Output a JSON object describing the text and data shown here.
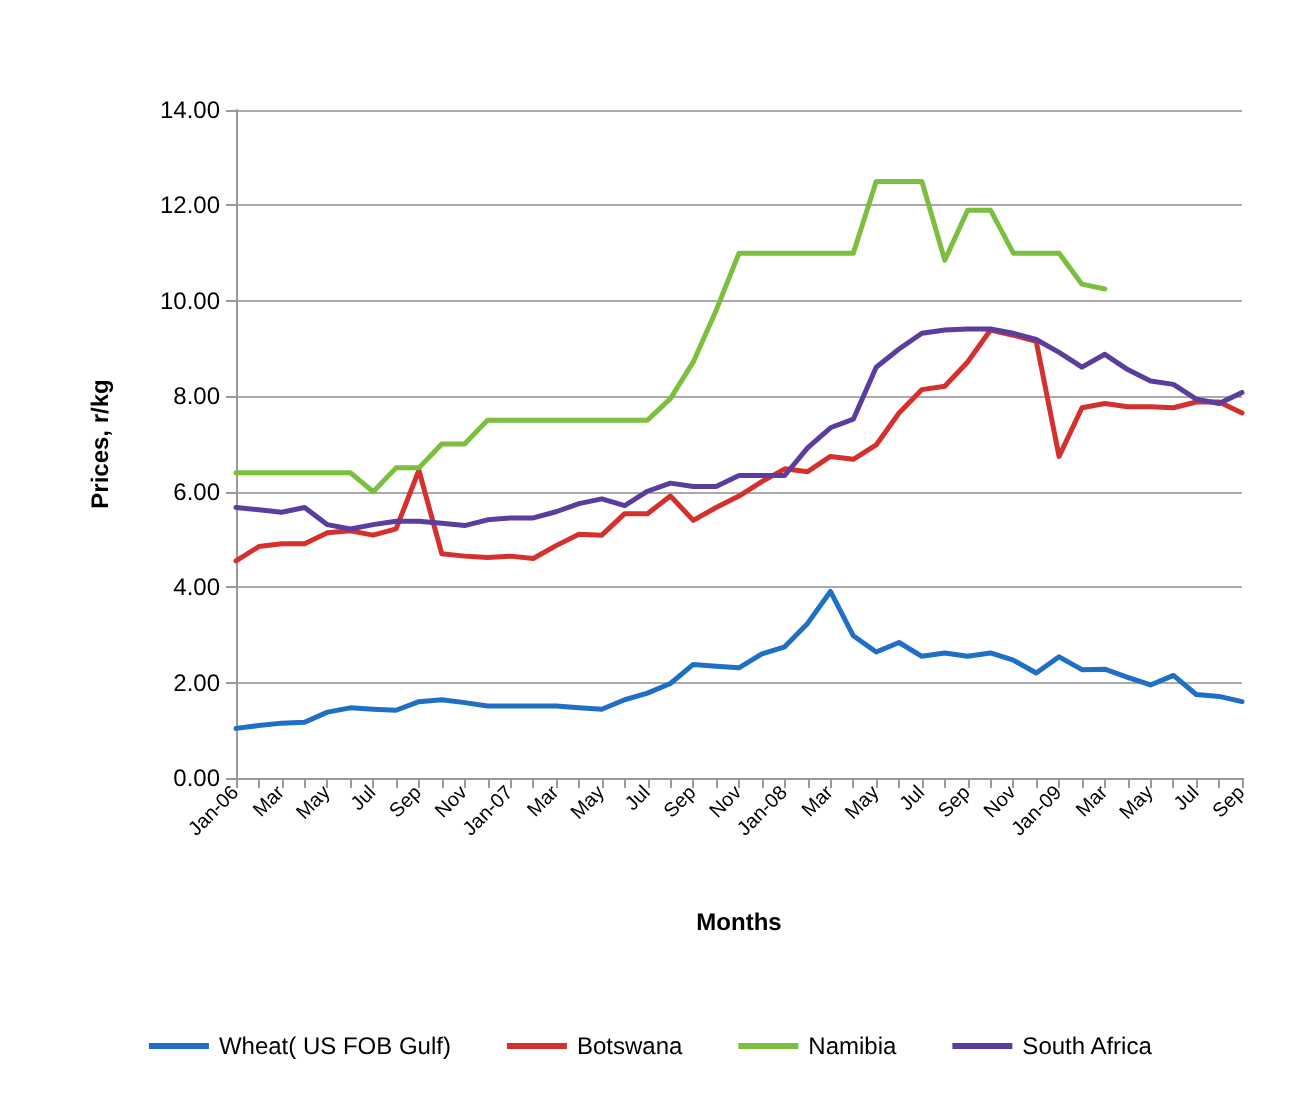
{
  "chart_data": {
    "type": "line",
    "xlabel": "Months",
    "ylabel": "Prices, r/kg",
    "categories": [
      "Jan-06",
      null,
      "Mar",
      null,
      "May",
      null,
      "Jul",
      null,
      "Sep",
      null,
      "Nov",
      null,
      "Jan-07",
      null,
      "Mar",
      null,
      "May",
      null,
      "Jul",
      null,
      "Sep",
      null,
      "Nov",
      null,
      "Jan-08",
      null,
      "Mar",
      null,
      "May",
      null,
      "Jul",
      null,
      "Sep",
      null,
      "Nov",
      null,
      "Jan-09",
      null,
      "Mar",
      null,
      "May",
      null,
      "Jul",
      null,
      "Sep"
    ],
    "series": [
      {
        "name": "Wheat( US FOB Gulf)",
        "color": "#1f6fc5",
        "values": [
          1.04,
          1.1,
          1.15,
          1.17,
          1.38,
          1.47,
          1.44,
          1.42,
          1.6,
          1.64,
          1.58,
          1.51,
          1.51,
          1.51,
          1.51,
          1.47,
          1.44,
          1.64,
          1.78,
          1.98,
          2.38,
          2.34,
          2.31,
          2.6,
          2.75,
          3.24,
          3.91,
          2.98,
          2.64,
          2.84,
          2.55,
          2.62,
          2.55,
          2.62,
          2.47,
          2.2,
          2.54,
          2.27,
          2.28,
          2.11,
          1.95,
          2.15,
          1.75,
          1.71,
          1.6
        ]
      },
      {
        "name": "Botswana",
        "color": "#d4312e",
        "values": [
          4.55,
          4.85,
          4.91,
          4.91,
          5.14,
          5.18,
          5.09,
          5.22,
          6.45,
          4.7,
          4.65,
          4.62,
          4.65,
          4.6,
          4.87,
          5.11,
          5.09,
          5.54,
          5.54,
          5.91,
          5.4,
          5.67,
          5.91,
          6.21,
          6.48,
          6.42,
          6.74,
          6.68,
          6.98,
          7.65,
          8.14,
          8.21,
          8.72,
          9.39,
          9.28,
          9.15,
          6.74,
          7.76,
          7.85,
          7.78,
          7.78,
          7.76,
          7.88,
          7.88,
          7.65
        ]
      },
      {
        "name": "Namibia",
        "color": "#7cbf3f",
        "values": [
          6.4,
          6.4,
          6.4,
          6.4,
          6.4,
          6.4,
          6.0,
          6.5,
          6.5,
          7.0,
          7.0,
          7.5,
          7.5,
          7.5,
          7.5,
          7.5,
          7.5,
          7.5,
          7.5,
          7.95,
          8.72,
          9.8,
          11.0,
          11.0,
          11.0,
          11.0,
          11.0,
          11.0,
          12.5,
          12.5,
          12.5,
          10.85,
          11.9,
          11.9,
          11.0,
          11.0,
          11.0,
          10.35,
          10.25,
          null,
          null,
          null,
          null,
          null,
          null
        ]
      },
      {
        "name": "South Africa",
        "color": "#5b3d9e",
        "values": [
          5.67,
          5.62,
          5.57,
          5.67,
          5.31,
          5.22,
          5.31,
          5.38,
          5.38,
          5.34,
          5.29,
          5.41,
          5.45,
          5.45,
          5.58,
          5.75,
          5.85,
          5.71,
          6.01,
          6.18,
          6.11,
          6.11,
          6.34,
          6.34,
          6.34,
          6.92,
          7.34,
          7.52,
          8.61,
          8.99,
          9.32,
          9.39,
          9.41,
          9.41,
          9.32,
          9.19,
          8.92,
          8.61,
          8.88,
          8.56,
          8.32,
          8.25,
          7.94,
          7.85,
          8.08
        ]
      }
    ],
    "ylim": [
      0,
      14
    ],
    "yticks": [
      {
        "value": 0,
        "label": "0.00"
      },
      {
        "value": 2,
        "label": "2.00"
      },
      {
        "value": 4,
        "label": "4.00"
      },
      {
        "value": 6,
        "label": "6.00"
      },
      {
        "value": 8,
        "label": "8.00"
      },
      {
        "value": 10,
        "label": "10.00"
      },
      {
        "value": 12,
        "label": "12.00"
      },
      {
        "value": 14,
        "label": "14.00"
      }
    ],
    "grid": "y",
    "legend": "bottom",
    "marker": "none",
    "line_style": "solid"
  }
}
